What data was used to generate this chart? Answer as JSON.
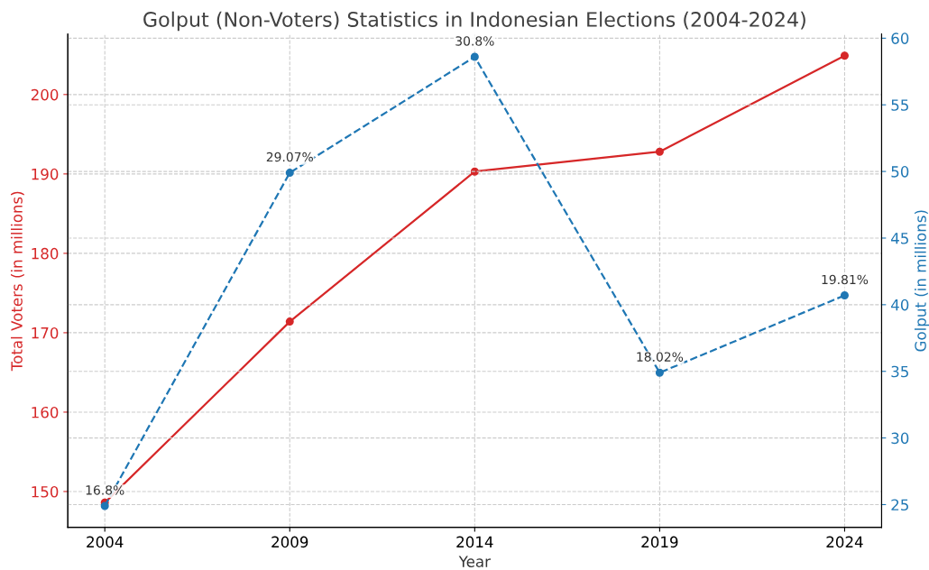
{
  "chart_data": {
    "type": "line",
    "title": "Golput (Non-Voters) Statistics in Indonesian Elections (2004-2024)",
    "xlabel": "Year",
    "ylabel": "Total Voters (in millions)",
    "y2label": "Golput (in millions)",
    "x": [
      2004,
      2009,
      2014,
      2019,
      2024
    ],
    "xlim": [
      2003,
      2025
    ],
    "xticks": [
      2004,
      2009,
      2014,
      2019,
      2024
    ],
    "ylim": [
      145.5,
      207.6
    ],
    "yticks": [
      150,
      160,
      170,
      180,
      190,
      200
    ],
    "y2lim": [
      23.3,
      60.3
    ],
    "y2ticks": [
      25,
      30,
      35,
      40,
      45,
      50,
      55,
      60
    ],
    "series": [
      {
        "color": "#d62728",
        "values": [
          148.6,
          171.4,
          190.3,
          192.8,
          204.9
        ],
        "line_style": "solid"
      },
      {
        "color": "#1f77b4",
        "values": [
          24.9,
          49.9,
          58.6,
          34.9,
          40.7
        ],
        "axis": "y2",
        "line_style": "dashed"
      }
    ],
    "annotations": [
      "16.8%",
      "29.07%",
      "30.8%",
      "18.02%",
      "19.81%"
    ],
    "grid": true,
    "marker": "circle"
  }
}
